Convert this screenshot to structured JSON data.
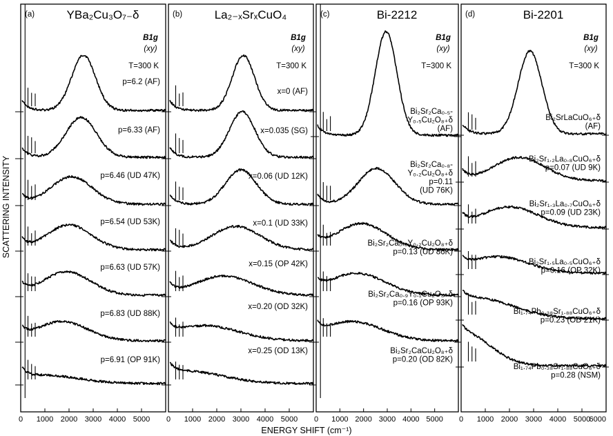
{
  "chart_data": [
    {
      "type": "line",
      "panel_tag": "(a)",
      "title": "YBa₂Cu₃O₇₋δ",
      "symmetry": "B1g",
      "polarization": "(xy)",
      "temperature": "T=300 K",
      "xlim": [
        0,
        6000
      ],
      "xticks": [
        "0",
        "1000",
        "2000",
        "3000",
        "4000",
        "5000"
      ],
      "series": [
        {
          "name": "p=6.2 (AF)",
          "peak_cm": 2600,
          "width_cm": 700,
          "amplitude": 80,
          "phonons": true
        },
        {
          "name": "p=6.33 (AF)",
          "peak_cm": 2500,
          "width_cm": 900,
          "amplitude": 58,
          "phonons": true
        },
        {
          "name": "p=6.46 (UD 47K)",
          "peak_cm": 2100,
          "width_cm": 1200,
          "amplitude": 40,
          "phonons": true
        },
        {
          "name": "p=6.54 (UD 53K)",
          "peak_cm": 2000,
          "width_cm": 1300,
          "amplitude": 36,
          "phonons": true
        },
        {
          "name": "p=6.63 (UD 57K)",
          "peak_cm": 1900,
          "width_cm": 1400,
          "amplitude": 34,
          "phonons": true
        },
        {
          "name": "p=6.83 (UD 88K)",
          "peak_cm": 1700,
          "width_cm": 1500,
          "amplitude": 28,
          "phonons": true
        },
        {
          "name": "p=6.91 (OP 91K)",
          "peak_cm": 1000,
          "width_cm": 2000,
          "amplitude": 12,
          "phonons": true
        }
      ]
    },
    {
      "type": "line",
      "panel_tag": "(b)",
      "title": "La₂₋ₓSrₓCuO₄",
      "symmetry": "B1g",
      "polarization": "(xy)",
      "temperature": "T=300 K",
      "xlim": [
        0,
        6000
      ],
      "xticks": [
        "0",
        "1000",
        "2000",
        "3000",
        "4000",
        "5000"
      ],
      "series": [
        {
          "name": "x=0  (AF)",
          "peak_cm": 3100,
          "width_cm": 650,
          "amplitude": 80,
          "phonons": true
        },
        {
          "name": "x=0.035  (SG)",
          "peak_cm": 3050,
          "width_cm": 750,
          "amplitude": 66,
          "phonons": true
        },
        {
          "name": "x=0.06  (UD 12K)",
          "peak_cm": 3000,
          "width_cm": 900,
          "amplitude": 50,
          "phonons": true
        },
        {
          "name": "x=0.1  (UD 33K)",
          "peak_cm": 2800,
          "width_cm": 1400,
          "amplitude": 34,
          "phonons": true
        },
        {
          "name": "x=0.15  (OP 42K)",
          "peak_cm": 2300,
          "width_cm": 1700,
          "amplitude": 28,
          "phonons": true
        },
        {
          "name": "x=0.20  (OD 32K)",
          "peak_cm": 1500,
          "width_cm": 2000,
          "amplitude": 22,
          "phonons": true
        },
        {
          "name": "x=0.25  (OD 13K)",
          "peak_cm": 700,
          "width_cm": 2200,
          "amplitude": 18,
          "phonons": true
        }
      ]
    },
    {
      "type": "line",
      "panel_tag": "(c)",
      "title": "Bi-2212",
      "symmetry": "B1g",
      "polarization": "(xy)",
      "temperature": "T=300 K",
      "xlim": [
        0,
        6000
      ],
      "xticks": [
        "0",
        "1000",
        "2000",
        "3000",
        "4000",
        "5000"
      ],
      "series": [
        {
          "name": "Bi₂Sr₂Ca₀.₅-Y₀.₅Cu₂O₈₊δ (AF)",
          "lines": [
            "Bi₂Sr₂Ca₀.₅-",
            "Y₀.₅Cu₂O₈₊δ",
            "(AF)"
          ],
          "peak_cm": 2950,
          "width_cm": 650,
          "amplitude": 150,
          "phonons": true
        },
        {
          "name": "Bi₂Sr₂Ca₀.₈-Y₀.₂Cu₂O₈₊δ p=0.11 (UD 76K)",
          "lines": [
            "Bi₂Sr₂Ca₀.₈-",
            "Y₀.₂Cu₂O₈₊δ",
            "p=0.11",
            "(UD 76K)"
          ],
          "peak_cm": 2550,
          "width_cm": 1100,
          "amplitude": 52,
          "phonons": true
        },
        {
          "name": "Bi₂Sr₂Ca₀.₈Y₀.₂Cu₂O₈₊δ p=0.13 (UD 86K)",
          "lines": [
            "Bi₂Sr₂Ca₀.₈Y₀.₂Cu₂O₈₊δ",
            "p=0.13  (UD 86K)"
          ],
          "peak_cm": 1900,
          "width_cm": 1500,
          "amplitude": 38,
          "phonons": true
        },
        {
          "name": "Bi₂Sr₂Ca₀.₉Y₀.₁Cu₂O₈₊δ p=0.16 (OP 93K)",
          "lines": [
            "Bi₂Sr₂Ca₀.₉Y₀.₁Cu₂O₈₊δ",
            "p=0.16  (OP 93K)"
          ],
          "peak_cm": 1700,
          "width_cm": 1700,
          "amplitude": 32,
          "phonons": true
        },
        {
          "name": "Bi₂Sr₂CaCu₂O₈₊δ p=0.20 (OD 82K)",
          "lines": [
            "Bi₂Sr₂CaCu₂O₈₊δ",
            "p=0.20  (OD 82K)"
          ],
          "peak_cm": 1500,
          "width_cm": 1800,
          "amplitude": 28,
          "phonons": true
        }
      ]
    },
    {
      "type": "line",
      "panel_tag": "(d)",
      "title": "Bi-2201",
      "symmetry": "B1g",
      "polarization": "(xy)",
      "temperature": "T=300 K",
      "xlim": [
        0,
        6000
      ],
      "xticks": [
        "0",
        "1000",
        "2000",
        "3000",
        "4000",
        "5000",
        "6000"
      ],
      "series": [
        {
          "name": "Bi₂SrLaCuO₆₊δ (AF)",
          "lines": [
            "Bi₂SrLaCuO₆₊δ",
            "(AF)"
          ],
          "peak_cm": 2850,
          "width_cm": 700,
          "amplitude": 120,
          "phonons": true
        },
        {
          "name": "Bi₂Sr₁.₂La₀.₈CuO₆₊δ p=0.07 (UD 9K)",
          "lines": [
            "Bi₂Sr₁.₂La₀.₈CuO₆₊δ",
            "p=0.07 (UD  9K)"
          ],
          "peak_cm": 2400,
          "width_cm": 1500,
          "amplitude": 34,
          "phonons": true
        },
        {
          "name": "Bi₂Sr₁.₃La₀.₇CuO₆₊δ p=0.09 (UD 23K)",
          "lines": [
            "Bi₂Sr₁.₃La₀.₇CuO₆₊δ",
            "p=0.09 (UD 23K)"
          ],
          "peak_cm": 2000,
          "width_cm": 1700,
          "amplitude": 30,
          "phonons": true
        },
        {
          "name": "Bi₂Sr₁.₅La₀.₅CuO₆₊δ p=0.16 (OP 32K)",
          "lines": [
            "Bi₂Sr₁.₅La₀.₅CuO₆₊δ",
            "p=0.16 (OP 32K)"
          ],
          "peak_cm": 1500,
          "width_cm": 1800,
          "amplitude": 24,
          "phonons": true
        },
        {
          "name": "Bi₁.₇₄Pb₀.₃₈Sr₁.₈₈CuO₆₊δ p=0.23 (OD 21K)",
          "lines": [
            "Bi₁.₇₄Pb₀.₃₈Sr₁.₈₈CuO₆₊δ",
            "p=0.23 (OD 21K)"
          ],
          "peak_cm": 600,
          "width_cm": 2200,
          "amplitude": 30,
          "phonons": true
        },
        {
          "name": "Bi₁.₇₄Pb₀.₃₈Sr₁.₈₈CuO₆₊δ p=0.28 (NSM)",
          "lines": [
            "Bi₁.₇₄Pb₀.₃₈Sr₁.₈₈CuO₆₊δ",
            "p=0.28 (NSM)"
          ],
          "peak_cm": 200,
          "width_cm": 1500,
          "amplitude": 45,
          "phonons": true
        }
      ]
    }
  ],
  "axes": {
    "xlabel": "ENERGY SHIFT (cm⁻¹)",
    "ylabel": "SCATTERING INTENSITY"
  }
}
